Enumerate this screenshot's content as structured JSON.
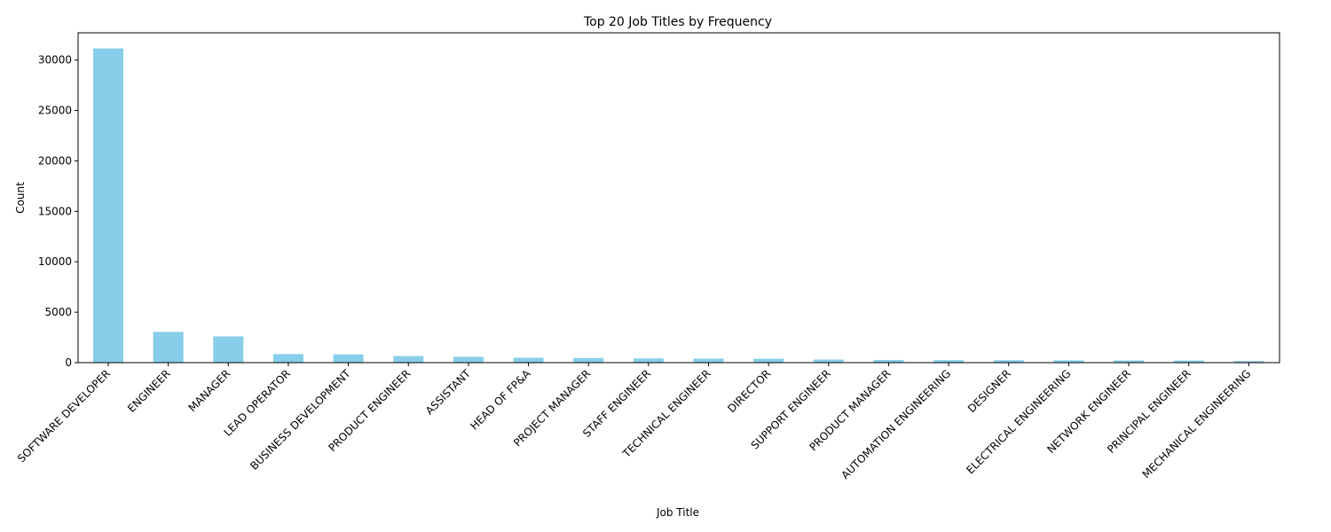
{
  "chart_data": {
    "type": "bar",
    "title": "Top 20 Job Titles by Frequency",
    "xlabel": "Job Title",
    "ylabel": "Count",
    "categories": [
      "SOFTWARE DEVELOPER",
      "ENGINEER",
      "MANAGER",
      "LEAD OPERATOR",
      "BUSINESS DEVELOPMENT",
      "PRODUCT ENGINEER",
      "ASSISTANT",
      "HEAD OF FP&A",
      "PROJECT MANAGER",
      "STAFF ENGINEER",
      "TECHNICAL ENGINEER",
      "DIRECTOR",
      "SUPPORT ENGINEER",
      "PRODUCT MANAGER",
      "AUTOMATION ENGINEERING",
      "DESIGNER",
      "ELECTRICAL ENGINEERING",
      "NETWORK ENGINEER",
      "PRINCIPAL ENGINEER",
      "MECHANICAL ENGINEERING"
    ],
    "values": [
      31150,
      3050,
      2600,
      850,
      820,
      650,
      580,
      480,
      460,
      420,
      400,
      390,
      310,
      260,
      250,
      240,
      230,
      220,
      210,
      160
    ],
    "ylim": [
      0,
      32700
    ],
    "yticks": [
      0,
      5000,
      10000,
      15000,
      20000,
      25000,
      30000
    ],
    "bar_color": "#87ceeb",
    "grid": false,
    "legend": "none"
  }
}
